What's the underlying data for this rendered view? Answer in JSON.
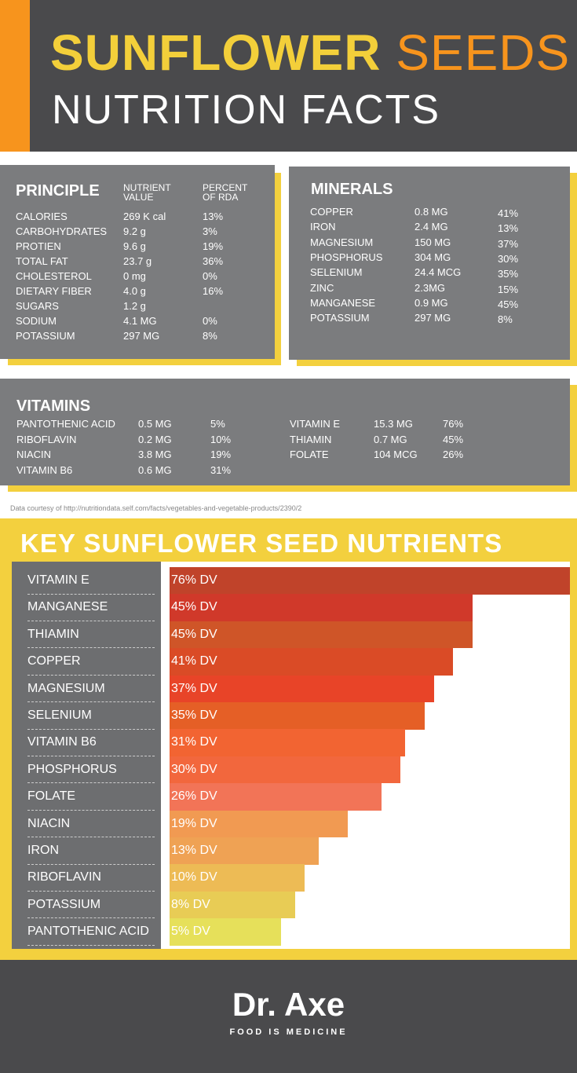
{
  "header": {
    "title_bold": "SUNFLOWER",
    "title_light": "SEEDS",
    "subtitle": "NUTRITION FACTS"
  },
  "principle": {
    "title": "PRINCIPLE",
    "col2": "NUTRIENT VALUE",
    "col3": "PERCENT OF RDA",
    "rows": [
      [
        "CALORIES",
        "269 K cal",
        "13%"
      ],
      [
        "CARBOHYDRATES",
        "9.2 g",
        "3%"
      ],
      [
        "PROTIEN",
        "9.6 g",
        "19%"
      ],
      [
        "TOTAL FAT",
        "23.7 g",
        "36%"
      ],
      [
        "CHOLESTEROL",
        "0 mg",
        "0%"
      ],
      [
        "DIETARY FIBER",
        "4.0 g",
        "16%"
      ],
      [
        "SUGARS",
        "1.2 g",
        ""
      ],
      [
        "SODIUM",
        "4.1 MG",
        "0%"
      ],
      [
        "POTASSIUM",
        "297 MG",
        "8%"
      ]
    ]
  },
  "minerals": {
    "title": "MINERALS",
    "rows": [
      [
        "COPPER",
        "0.8 MG",
        "41%"
      ],
      [
        "IRON",
        "2.4 MG",
        "13%"
      ],
      [
        "MAGNESIUM",
        "150 MG",
        "37%"
      ],
      [
        "PHOSPHORUS",
        "304 MG",
        "30%"
      ],
      [
        "SELENIUM",
        "24.4 MCG",
        "35%"
      ],
      [
        "ZINC",
        "2.3MG",
        "15%"
      ],
      [
        "MANGANESE",
        "0.9 MG",
        "45%"
      ],
      [
        "POTASSIUM",
        "297 MG",
        "8%"
      ]
    ]
  },
  "vitamins": {
    "title": "VITAMINS",
    "left": [
      [
        "PANTOTHENIC ACID",
        "0.5 MG",
        "5%"
      ],
      [
        "RIBOFLAVIN",
        "0.2 MG",
        "10%"
      ],
      [
        "NIACIN",
        "3.8 MG",
        "19%"
      ],
      [
        "VITAMIN B6",
        "0.6 MG",
        "31%"
      ]
    ],
    "right": [
      [
        "VITAMIN E",
        "15.3 MG",
        "76%"
      ],
      [
        "THIAMIN",
        "0.7 MG",
        "45%"
      ],
      [
        "FOLATE",
        "104 MCG",
        "26%"
      ]
    ]
  },
  "credit": "Data courtesy of http://nutritiondata.self.com/facts/vegetables-and-vegetable-products/2390/2",
  "chart_data": {
    "type": "bar",
    "orientation": "horizontal",
    "title": "KEY SUNFLOWER SEED NUTRIENTS",
    "categories": [
      "VITAMIN E",
      "MANGANESE",
      "THIAMIN",
      "COPPER",
      "MAGNESIUM",
      "SELENIUM",
      "VITAMIN B6",
      "PHOSPHORUS",
      "FOLATE",
      "NIACIN",
      "IRON",
      "RIBOFLAVIN",
      "POTASSIUM",
      "PANTOTHENIC ACID"
    ],
    "values": [
      76,
      45,
      45,
      41,
      37,
      35,
      31,
      30,
      26,
      19,
      13,
      10,
      8,
      5
    ],
    "data_labels": [
      "76% DV",
      "45% DV",
      "45% DV",
      "41% DV",
      "37% DV",
      "35% DV",
      "31% DV",
      "30% DV",
      "26% DV",
      "19% DV",
      "13% DV",
      "10% DV",
      "8% DV",
      "5% DV"
    ],
    "colors": [
      "#c0432a",
      "#d0392a",
      "#cf5528",
      "#da4b26",
      "#e84428",
      "#e55f26",
      "#f26432",
      "#f2673d",
      "#f27457",
      "#f19a52",
      "#efa254",
      "#edbb55",
      "#e8cc55",
      "#e6e05a"
    ]
  },
  "footer": {
    "logo": "Dr. Axe",
    "tagline": "FOOD IS MEDICINE"
  },
  "colors": {
    "dark": "#4a4a4c",
    "orange": "#f7941d",
    "yellow": "#f3d03e",
    "panel": "#7b7c7e"
  }
}
